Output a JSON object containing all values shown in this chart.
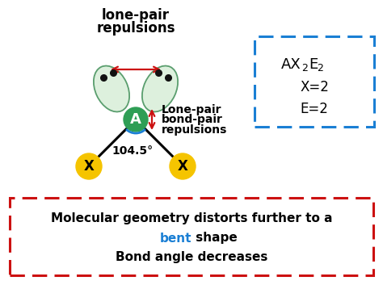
{
  "bg_color": "#ffffff",
  "lone_pair_label1": "Lone-pair",
  "lone_pair_label2": "bond-pair",
  "lone_pair_label3": "repulsions",
  "angle_label": "104.5°",
  "center_atom_label": "A",
  "center_atom_color": "#2e9e55",
  "x_atom_label": "X",
  "x_atom_color": "#f5c400",
  "formula_line2": "X=2",
  "formula_line3": "E=2",
  "box_color_blue": "#1a7fd4",
  "box_color_red": "#cc1111",
  "bottom_text1": "Molecular geometry distorts further to a",
  "bottom_text2_black": " shape",
  "bottom_text2_blue": "bent",
  "bottom_text3": "Bond angle decreases",
  "arrow_color_red": "#cc1111",
  "arrow_color_blue": "#1a7fd4",
  "lone_pair_fill": "#ddf0dd",
  "lone_pair_edge": "#5a9e6e",
  "dot_color": "#111111",
  "top_text1": "lone-pair",
  "top_text2": "repulsions"
}
